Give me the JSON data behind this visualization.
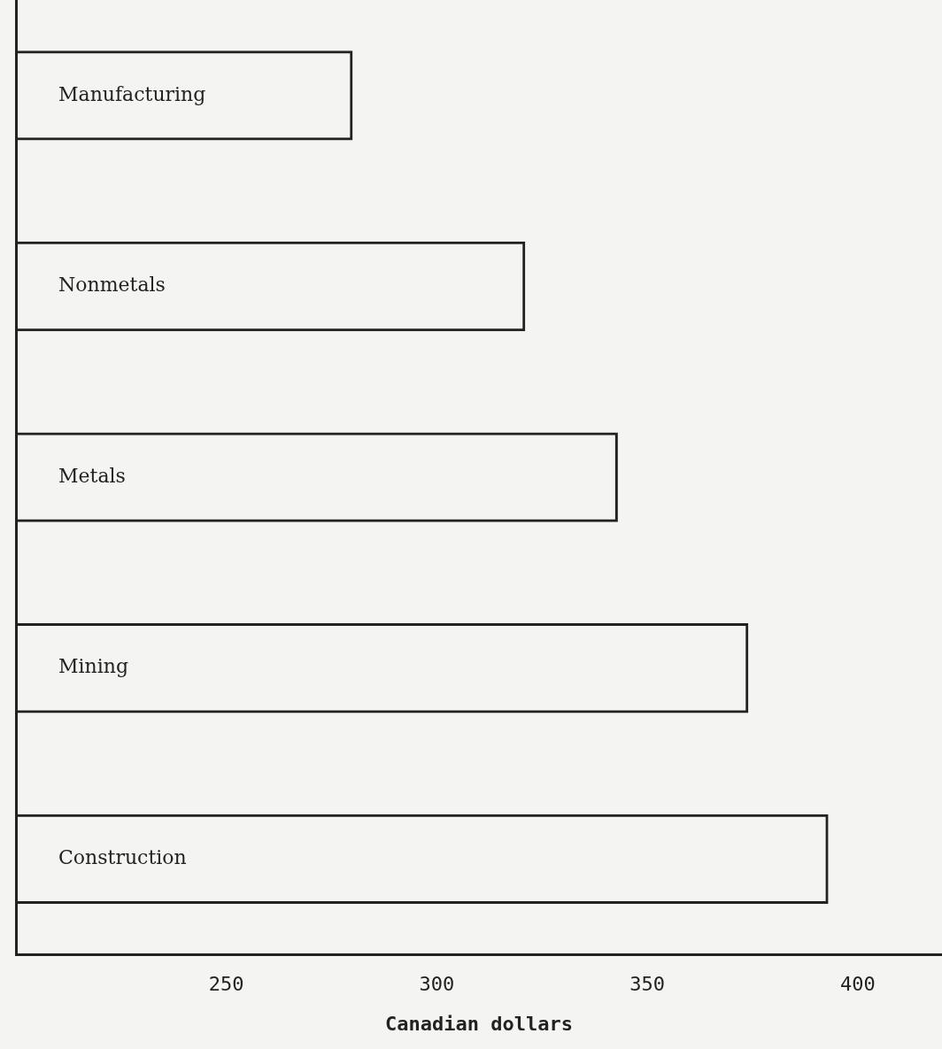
{
  "chart_data": {
    "type": "bar",
    "orientation": "horizontal",
    "xlabel": "Canadian dollars",
    "categories": [
      "Manufacturing",
      "Nonmetals",
      "Metals",
      "Mining",
      "Construction"
    ],
    "values": [
      280,
      321,
      343,
      374,
      393
    ],
    "color": "#222222",
    "xlim": [
      200,
      420
    ],
    "xticks": [
      250,
      300,
      350,
      400
    ],
    "grid": false,
    "legend": false
  }
}
